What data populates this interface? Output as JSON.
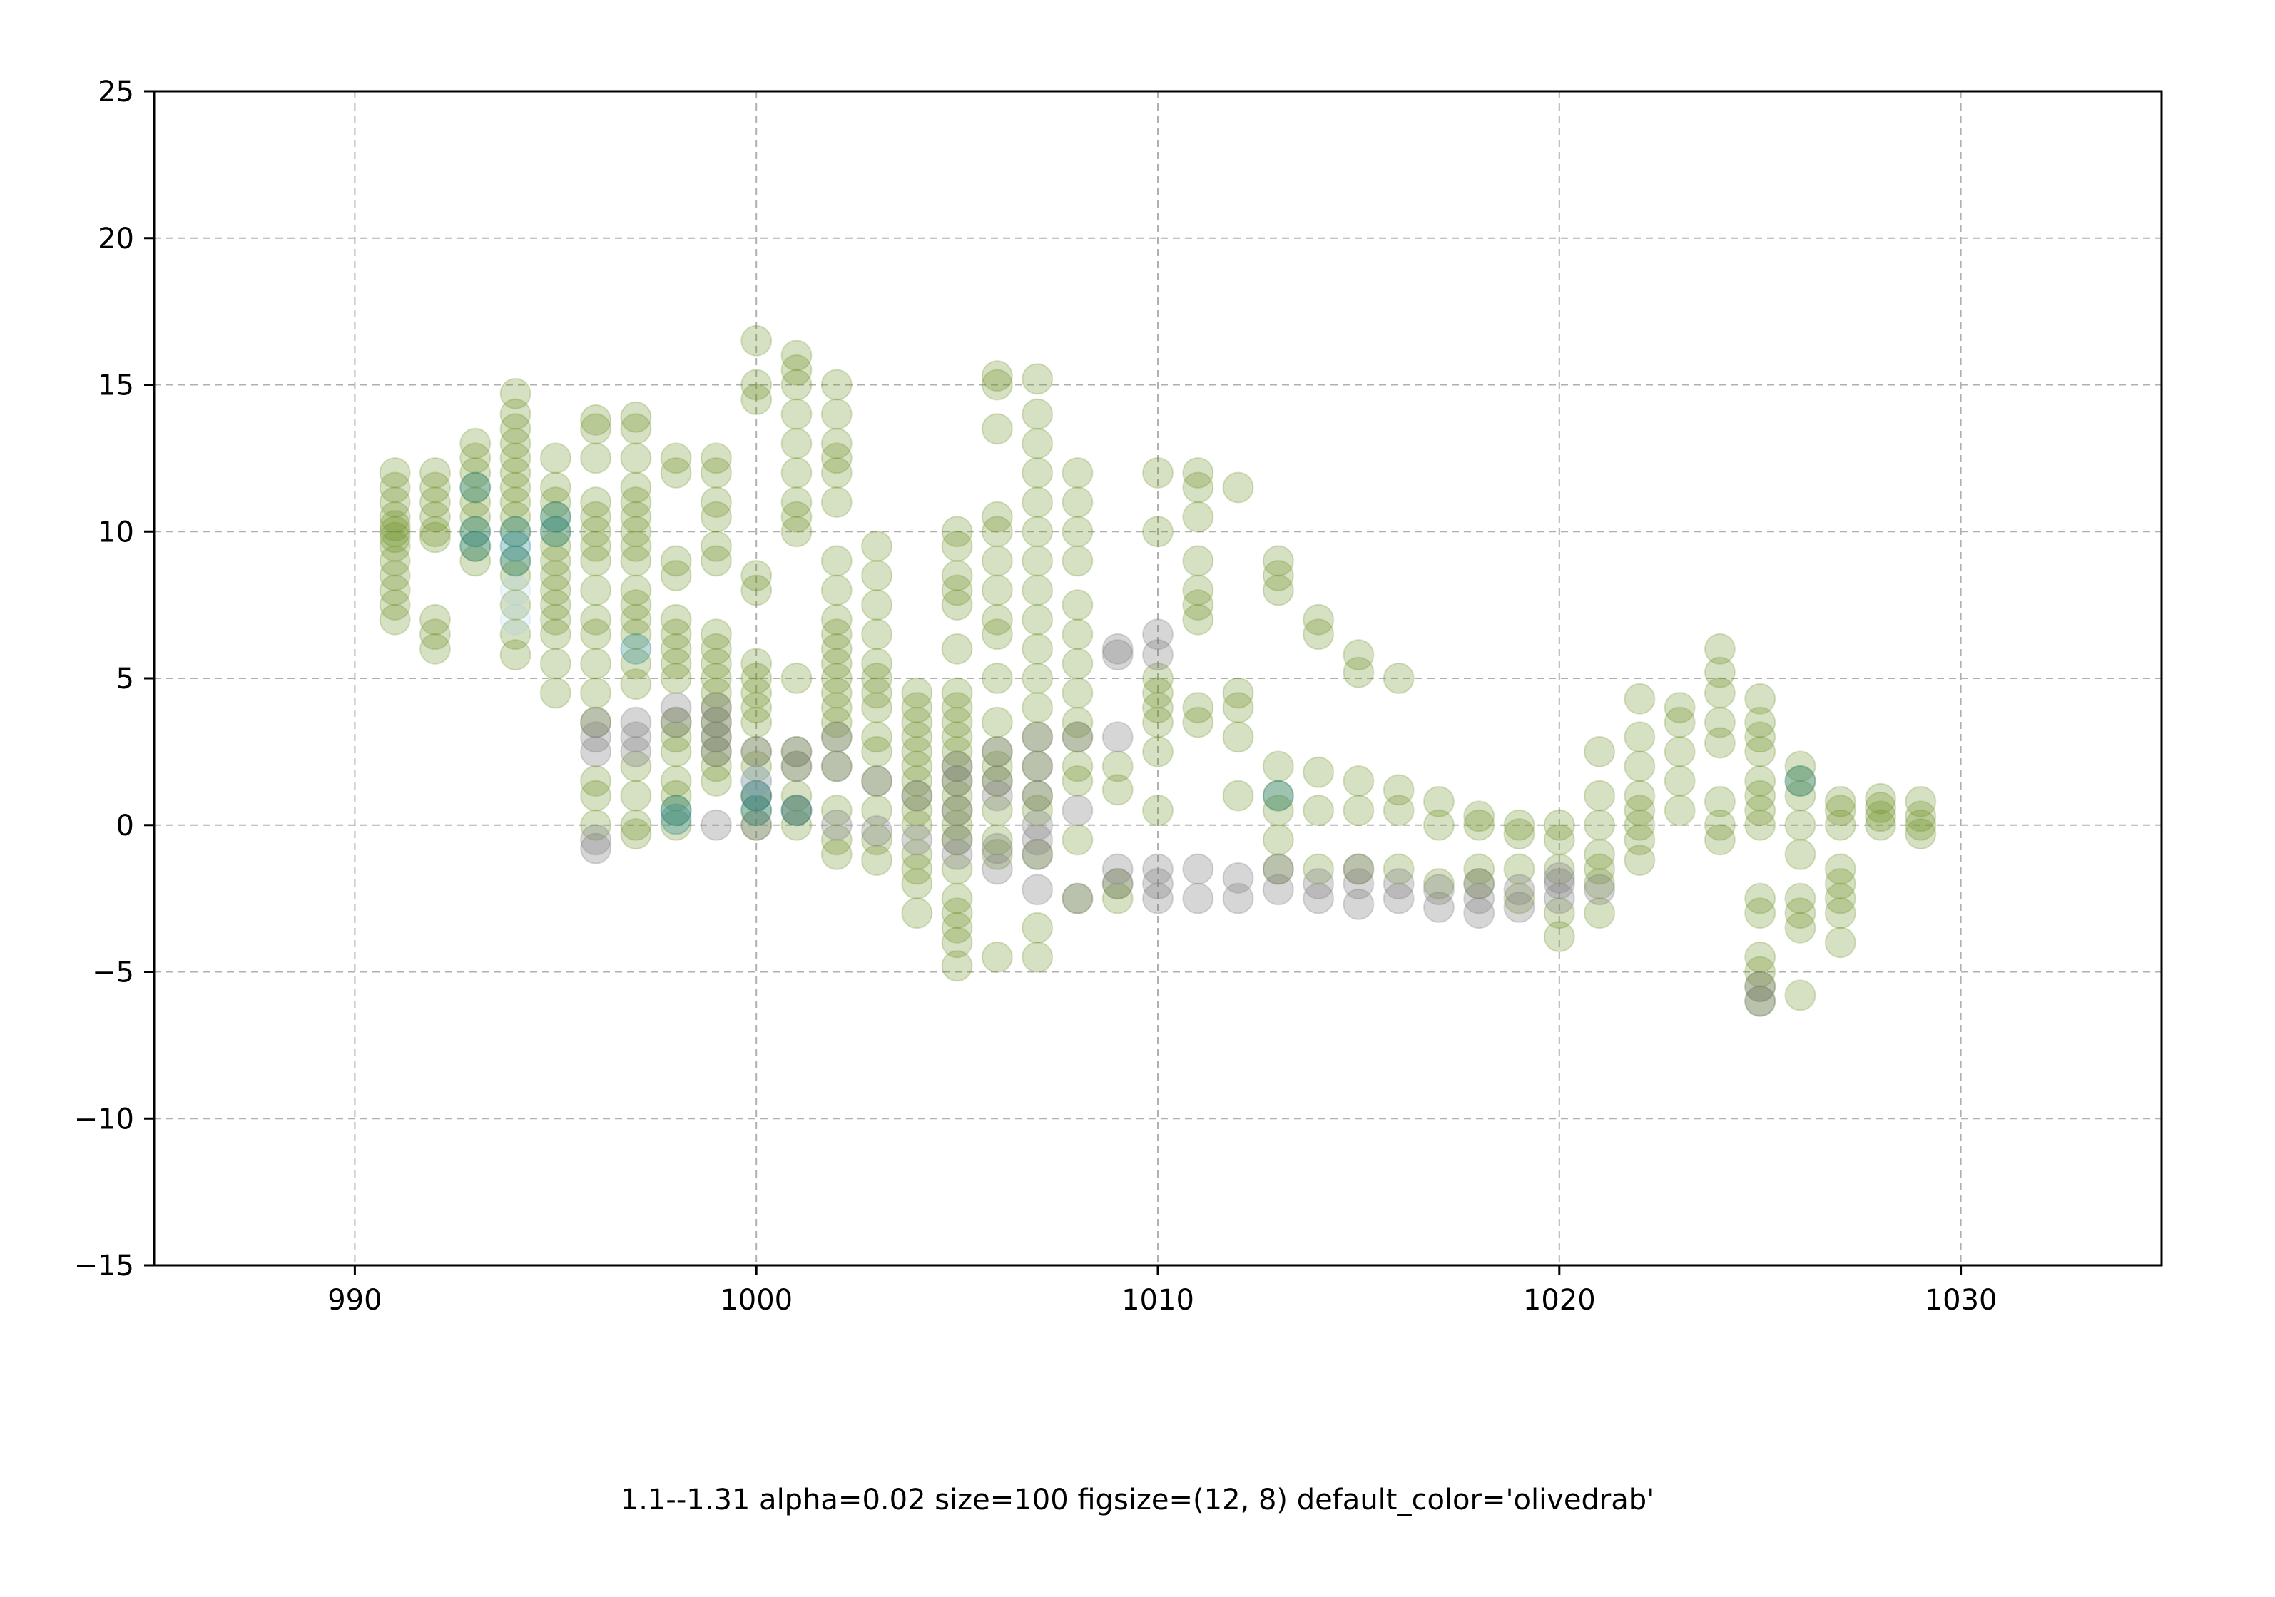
{
  "chart_data": {
    "type": "scatter",
    "title": "",
    "xlabel": "",
    "ylabel": "",
    "xlim": [
      985,
      1035
    ],
    "ylim": [
      -15,
      25
    ],
    "x_ticks": [
      990,
      1000,
      1010,
      1020,
      1030
    ],
    "y_ticks": [
      -15,
      -10,
      -5,
      0,
      5,
      10,
      15,
      20,
      25
    ],
    "y_tick_labels": [
      "−15",
      "−10",
      "−5",
      "0",
      "5",
      "10",
      "15",
      "20",
      "25"
    ],
    "x_tick_labels": [
      "990",
      "1000",
      "1010",
      "1020",
      "1030"
    ],
    "grid": true,
    "grid_style": "dashed",
    "marker_alpha": 0.02,
    "marker_size": 100,
    "colors": {
      "default": "#6b8e23",
      "gray": "#808080",
      "teal": "#20808a",
      "light_blue": "#9ccfe8"
    },
    "series": [
      {
        "color": "default",
        "columns": [
          {
            "x": 991,
            "y": [
              7,
              7.5,
              8,
              8.5,
              9,
              9.5,
              9.8,
              10,
              10.2,
              10.5,
              11,
              11.5,
              12
            ]
          },
          {
            "x": 992,
            "y": [
              6,
              6.5,
              7,
              9.8,
              10,
              10.5,
              11,
              11.5,
              12
            ]
          },
          {
            "x": 993,
            "y": [
              9,
              9.5,
              10,
              10.5,
              11,
              11.5,
              12,
              12.5,
              13
            ]
          },
          {
            "x": 994,
            "y": [
              5.8,
              6.5,
              7.5,
              8.5,
              9,
              10,
              10.5,
              11,
              11.5,
              12,
              12.5,
              13,
              13.5,
              14,
              14.7
            ]
          },
          {
            "x": 995,
            "y": [
              4.5,
              5.5,
              6.5,
              7,
              7.5,
              8,
              8.5,
              9,
              9.5,
              10,
              10.5,
              11,
              11.5,
              12.5
            ]
          },
          {
            "x": 996,
            "y": [
              0,
              1,
              1.5,
              3.5,
              4.5,
              5.5,
              6.5,
              7,
              8,
              9,
              9.5,
              10,
              10.5,
              11,
              12.5,
              13.5,
              13.8
            ]
          },
          {
            "x": 997,
            "y": [
              -0.3,
              0,
              1,
              2,
              4.8,
              5.5,
              6.5,
              7,
              7.5,
              8,
              9,
              9.5,
              10,
              10.5,
              11,
              11.5,
              12.5,
              13.5,
              13.9
            ]
          },
          {
            "x": 998,
            "y": [
              0,
              0.5,
              1,
              1.5,
              2.5,
              3,
              3.5,
              5,
              5.5,
              6,
              6.5,
              7,
              8.5,
              9,
              12,
              12.5
            ]
          },
          {
            "x": 999,
            "y": [
              1.5,
              2,
              2.5,
              3,
              3.5,
              4,
              4.5,
              5,
              5.5,
              6,
              6.5,
              9,
              9.5,
              10.5,
              11,
              12,
              12.5
            ]
          },
          {
            "x": 1000,
            "y": [
              0,
              0.5,
              1,
              2,
              2.5,
              3.5,
              4,
              4.5,
              5,
              5.5,
              8,
              8.5,
              14.5,
              15,
              16.5
            ]
          },
          {
            "x": 1001,
            "y": [
              0,
              0.5,
              1,
              2,
              2.5,
              5,
              10,
              10.5,
              11,
              12,
              13,
              14,
              15,
              15.5,
              16
            ]
          },
          {
            "x": 1002,
            "y": [
              -1,
              -0.5,
              0.5,
              2,
              3,
              3.5,
              4,
              4.5,
              5,
              5.5,
              6,
              6.5,
              7,
              8,
              9,
              11,
              12,
              12.5,
              13,
              14,
              15
            ]
          },
          {
            "x": 1003,
            "y": [
              -1.2,
              -0.5,
              0.5,
              1.5,
              2.5,
              3,
              4,
              4.5,
              5,
              5.5,
              6.5,
              7.5,
              8.5,
              9.5
            ]
          },
          {
            "x": 1004,
            "y": [
              -3,
              -2,
              -1.5,
              -1,
              0,
              0.5,
              1,
              1.5,
              2,
              2.5,
              3,
              3.5,
              4,
              4.5
            ]
          },
          {
            "x": 1005,
            "y": [
              -4.8,
              -4,
              -3.5,
              -3,
              -2.5,
              -1.5,
              -0.5,
              0,
              0.5,
              1,
              1.5,
              2,
              2.5,
              3,
              3.5,
              4,
              4.5,
              6,
              7.5,
              8,
              8.5,
              9.5,
              10
            ]
          },
          {
            "x": 1006,
            "y": [
              -4.5,
              -1,
              -0.5,
              0.5,
              1.5,
              2,
              2.5,
              3.5,
              5,
              6.5,
              7,
              8,
              9,
              10,
              10.5,
              13.5,
              15,
              15.3
            ]
          },
          {
            "x": 1007,
            "y": [
              -4.5,
              -3.5,
              -1,
              0.5,
              1,
              2,
              3,
              4,
              5,
              6,
              7,
              8,
              9,
              10,
              11,
              12,
              13,
              14,
              15.2
            ]
          },
          {
            "x": 1008,
            "y": [
              -2.5,
              -0.5,
              1.5,
              2,
              3,
              3.5,
              4.5,
              5.5,
              6.5,
              7.5,
              9,
              10,
              11,
              12
            ]
          },
          {
            "x": 1009,
            "y": [
              -2.5,
              -2,
              1.2,
              2
            ]
          },
          {
            "x": 1010,
            "y": [
              0.5,
              2.5,
              3.5,
              4,
              4.5,
              5,
              10,
              12
            ]
          },
          {
            "x": 1011,
            "y": [
              3.5,
              4,
              7,
              7.5,
              8,
              9,
              10.5,
              11.5,
              12
            ]
          },
          {
            "x": 1012,
            "y": [
              1,
              3,
              4,
              4.5,
              11.5
            ]
          },
          {
            "x": 1013,
            "y": [
              -1.5,
              -0.5,
              0.5,
              1,
              2,
              8,
              8.5,
              9
            ]
          },
          {
            "x": 1014,
            "y": [
              -1.5,
              0.5,
              1.8,
              6.5,
              7
            ]
          },
          {
            "x": 1015,
            "y": [
              -1.5,
              0.5,
              1.5,
              5.2,
              5.8
            ]
          },
          {
            "x": 1016,
            "y": [
              -1.5,
              0.5,
              1.2,
              5
            ]
          },
          {
            "x": 1017,
            "y": [
              -2,
              0,
              0.8
            ]
          },
          {
            "x": 1018,
            "y": [
              -2,
              -1.5,
              0,
              0.3
            ]
          },
          {
            "x": 1019,
            "y": [
              -2.5,
              -1.5,
              -0.3,
              0
            ]
          },
          {
            "x": 1020,
            "y": [
              -3.8,
              -3,
              -1.5,
              -0.5,
              0
            ]
          },
          {
            "x": 1021,
            "y": [
              -3,
              -2,
              -1.5,
              -1,
              0,
              1,
              2.5
            ]
          },
          {
            "x": 1022,
            "y": [
              -1.2,
              -0.5,
              0,
              0.5,
              1,
              2,
              3,
              4.3
            ]
          },
          {
            "x": 1023,
            "y": [
              0.5,
              1.5,
              2.5,
              3.5,
              4
            ]
          },
          {
            "x": 1024,
            "y": [
              -0.5,
              0,
              0.8,
              2.8,
              3.5,
              4.5,
              5.2,
              6
            ]
          },
          {
            "x": 1025,
            "y": [
              -6,
              -5.5,
              -5,
              -4.5,
              -3,
              -2.5,
              0,
              0.5,
              1,
              1.5,
              2.5,
              3,
              3.5,
              4.3
            ]
          },
          {
            "x": 1026,
            "y": [
              -5.8,
              -3.5,
              -3,
              -2.5,
              -1,
              0,
              1,
              1.5,
              2
            ]
          },
          {
            "x": 1027,
            "y": [
              -4,
              -3,
              -2.5,
              -2,
              -1.5,
              0,
              0.5,
              0.8
            ]
          },
          {
            "x": 1028,
            "y": [
              0,
              0.3,
              0.6,
              0.9
            ]
          },
          {
            "x": 1029,
            "y": [
              -0.3,
              0,
              0.3,
              0.8
            ]
          }
        ]
      },
      {
        "color": "gray",
        "columns": [
          {
            "x": 996,
            "y": [
              -0.8,
              -0.5,
              2.5,
              3,
              3.5
            ]
          },
          {
            "x": 997,
            "y": [
              2.5,
              3,
              3.5
            ]
          },
          {
            "x": 998,
            "y": [
              3.5,
              4
            ]
          },
          {
            "x": 999,
            "y": [
              0,
              2.5,
              3,
              3.5,
              4
            ]
          },
          {
            "x": 1000,
            "y": [
              0,
              1,
              1.5,
              2.5
            ]
          },
          {
            "x": 1001,
            "y": [
              0.5,
              2,
              2.5
            ]
          },
          {
            "x": 1002,
            "y": [
              0,
              2,
              3
            ]
          },
          {
            "x": 1003,
            "y": [
              -0.2,
              1.5
            ]
          },
          {
            "x": 1004,
            "y": [
              -0.5,
              1
            ]
          },
          {
            "x": 1005,
            "y": [
              -1,
              -0.5,
              0.5,
              1.5,
              2
            ]
          },
          {
            "x": 1006,
            "y": [
              -1.5,
              -0.8,
              1,
              1.5,
              2.5
            ]
          },
          {
            "x": 1007,
            "y": [
              -2.2,
              -1,
              -0.5,
              0,
              1,
              2,
              3
            ]
          },
          {
            "x": 1008,
            "y": [
              -2.5,
              0.5,
              3
            ]
          },
          {
            "x": 1009,
            "y": [
              -2,
              -1.5,
              3,
              5.8,
              6
            ]
          },
          {
            "x": 1010,
            "y": [
              -2.5,
              -2,
              -1.5,
              5.8,
              6.5
            ]
          },
          {
            "x": 1011,
            "y": [
              -2.5,
              -1.5
            ]
          },
          {
            "x": 1012,
            "y": [
              -2.5,
              -1.8
            ]
          },
          {
            "x": 1013,
            "y": [
              -2.2,
              -1.5
            ]
          },
          {
            "x": 1014,
            "y": [
              -2.5,
              -2
            ]
          },
          {
            "x": 1015,
            "y": [
              -2.7,
              -2,
              -1.5
            ]
          },
          {
            "x": 1016,
            "y": [
              -2.5,
              -2
            ]
          },
          {
            "x": 1017,
            "y": [
              -2.8,
              -2.2
            ]
          },
          {
            "x": 1018,
            "y": [
              -3,
              -2.5,
              -2
            ]
          },
          {
            "x": 1019,
            "y": [
              -2.8,
              -2.2
            ]
          },
          {
            "x": 1020,
            "y": [
              -2.5,
              -2,
              -1.8
            ]
          },
          {
            "x": 1021,
            "y": [
              -2.2
            ]
          },
          {
            "x": 1025,
            "y": [
              -6,
              -5.5
            ]
          }
        ]
      },
      {
        "color": "teal",
        "columns": [
          {
            "x": 993,
            "y": [
              9.5,
              10,
              11.5
            ]
          },
          {
            "x": 994,
            "y": [
              9,
              9.5,
              10
            ]
          },
          {
            "x": 995,
            "y": [
              10,
              10.5
            ]
          },
          {
            "x": 997,
            "y": [
              6
            ]
          },
          {
            "x": 998,
            "y": [
              0.2,
              0.5
            ]
          },
          {
            "x": 1000,
            "y": [
              0.5,
              1
            ]
          },
          {
            "x": 1001,
            "y": [
              0.5
            ]
          },
          {
            "x": 1013,
            "y": [
              1
            ]
          },
          {
            "x": 1026,
            "y": [
              1.5
            ]
          }
        ]
      },
      {
        "color": "light_blue",
        "columns": [
          {
            "x": 994,
            "y": [
              7,
              8
            ]
          },
          {
            "x": 1000,
            "y": [
              1.5
            ]
          }
        ]
      }
    ]
  },
  "caption": "1.1--1.31 alpha=0.02 size=100 figsize=(12, 8) default_color='olivedrab'"
}
